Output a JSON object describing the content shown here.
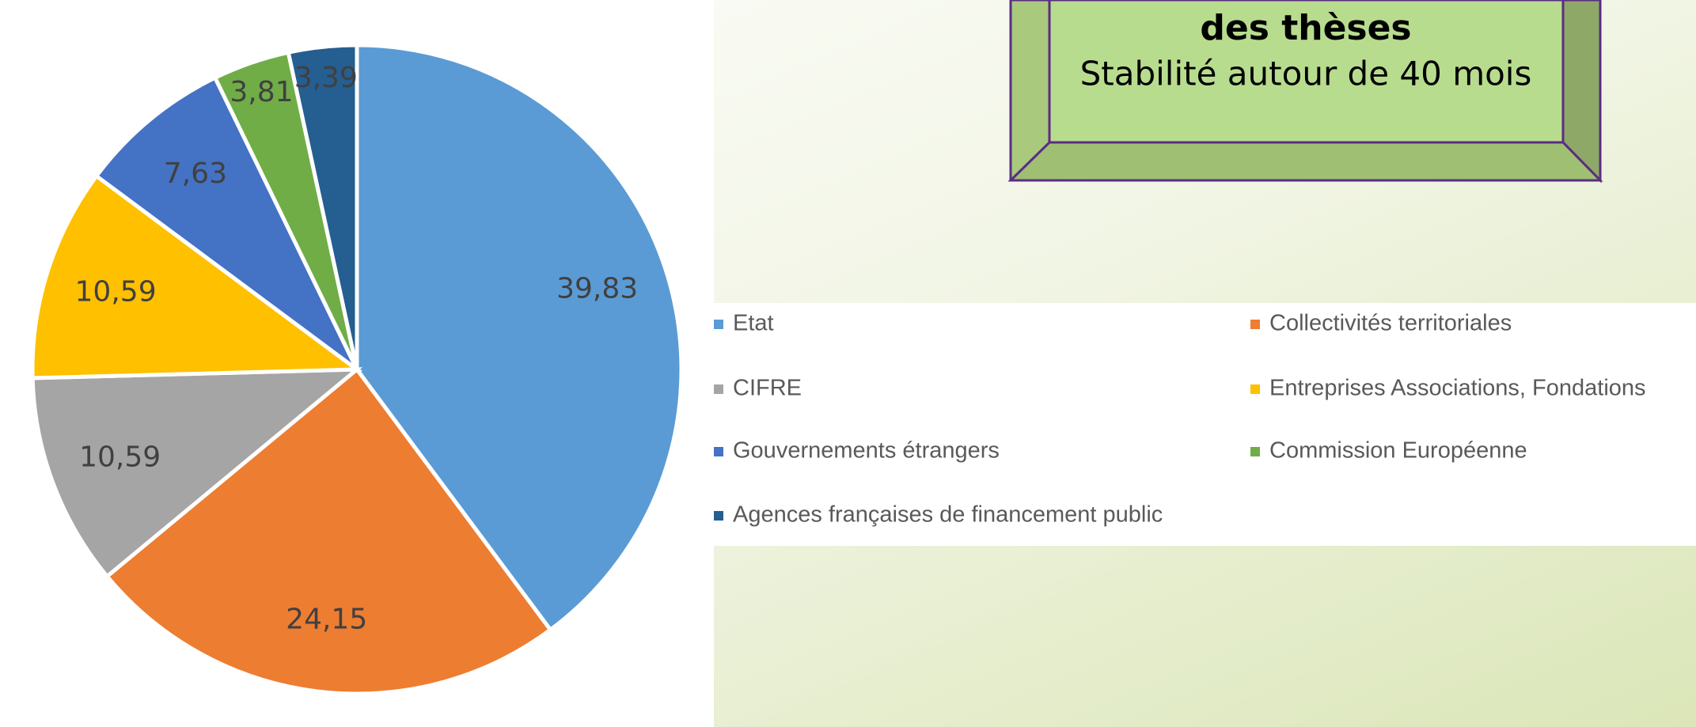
{
  "chart_data": {
    "type": "pie",
    "categories": [
      "Etat",
      "Collectivités territoriales",
      "CIFRE",
      "Entreprises Associations, Fondations",
      "Gouvernements étrangers",
      "Commission Européenne",
      "Agences françaises de financement public"
    ],
    "values": [
      39.83,
      24.15,
      10.59,
      10.59,
      7.63,
      3.81,
      3.39
    ],
    "value_labels": [
      "39,83",
      "24,15",
      "10,59",
      "10,59",
      "7,63",
      "3,81",
      "3,39"
    ],
    "colors": [
      "#5b9bd5",
      "#ed7d31",
      "#a5a5a5",
      "#ffc000",
      "#4472c4",
      "#70ad47",
      "#255e91"
    ],
    "legend": "right"
  },
  "textbox": {
    "title": "des thèses",
    "text": "Stabilité autour de 40 mois"
  }
}
